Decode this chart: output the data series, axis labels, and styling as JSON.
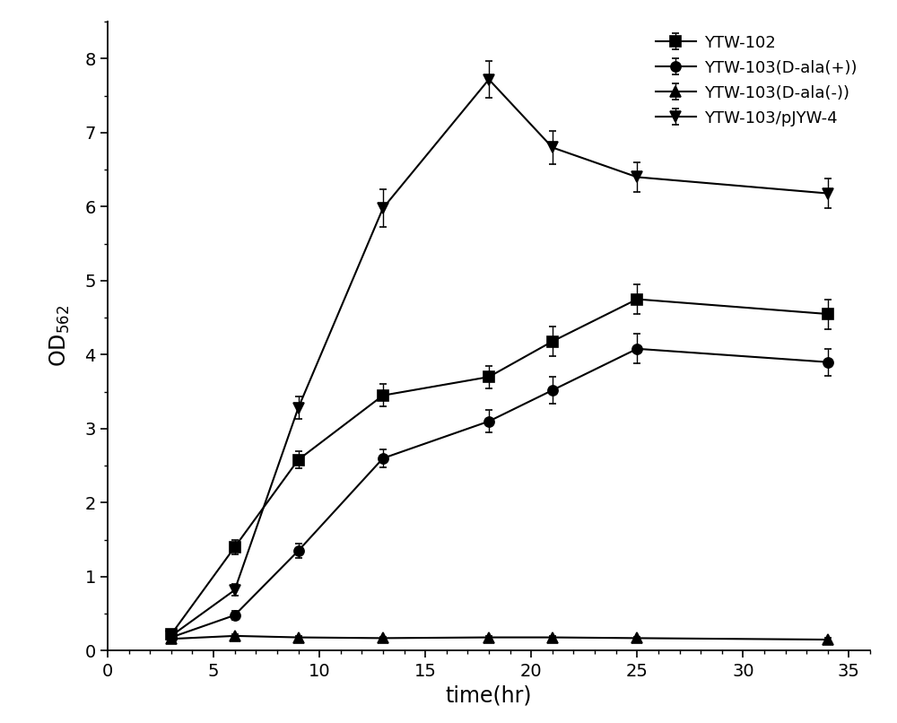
{
  "title": "",
  "xlabel": "time(hr)",
  "ylabel": "OD$_{562}$",
  "xlim": [
    0,
    36
  ],
  "ylim": [
    0,
    8.5
  ],
  "xticks": [
    0,
    5,
    10,
    15,
    20,
    25,
    30,
    35
  ],
  "yticks": [
    0,
    1,
    2,
    3,
    4,
    5,
    6,
    7,
    8
  ],
  "series": [
    {
      "label": "YTW-102",
      "marker": "s",
      "color": "#000000",
      "x": [
        3,
        6,
        9,
        13,
        18,
        21,
        25,
        34
      ],
      "y": [
        0.22,
        1.4,
        2.58,
        3.45,
        3.7,
        4.18,
        4.75,
        4.55
      ],
      "yerr": [
        0.05,
        0.1,
        0.12,
        0.15,
        0.15,
        0.2,
        0.2,
        0.2
      ]
    },
    {
      "label": "YTW-103(D-ala(+))",
      "marker": "o",
      "color": "#000000",
      "x": [
        3,
        6,
        9,
        13,
        18,
        21,
        25,
        34
      ],
      "y": [
        0.18,
        0.48,
        1.35,
        2.6,
        3.1,
        3.52,
        4.08,
        3.9
      ],
      "yerr": [
        0.04,
        0.06,
        0.1,
        0.12,
        0.15,
        0.18,
        0.2,
        0.18
      ]
    },
    {
      "label": "YTW-103(D-ala(-))",
      "marker": "^",
      "color": "#000000",
      "x": [
        3,
        6,
        9,
        13,
        18,
        21,
        25,
        34
      ],
      "y": [
        0.16,
        0.2,
        0.18,
        0.17,
        0.18,
        0.18,
        0.17,
        0.15
      ],
      "yerr": [
        0.02,
        0.02,
        0.02,
        0.02,
        0.02,
        0.02,
        0.02,
        0.02
      ]
    },
    {
      "label": "YTW-103/pJYW-4",
      "marker": "v",
      "color": "#000000",
      "x": [
        3,
        6,
        9,
        13,
        18,
        21,
        25,
        34
      ],
      "y": [
        0.2,
        0.82,
        3.28,
        5.98,
        7.72,
        6.8,
        6.4,
        6.18
      ],
      "yerr": [
        0.05,
        0.08,
        0.15,
        0.25,
        0.25,
        0.22,
        0.2,
        0.2
      ]
    }
  ],
  "legend_loc": "upper right",
  "markersize": 8,
  "linewidth": 1.5,
  "capsize": 3,
  "elinewidth": 1.0,
  "background_color": "#ffffff",
  "figure_width": 10.0,
  "figure_height": 8.06
}
